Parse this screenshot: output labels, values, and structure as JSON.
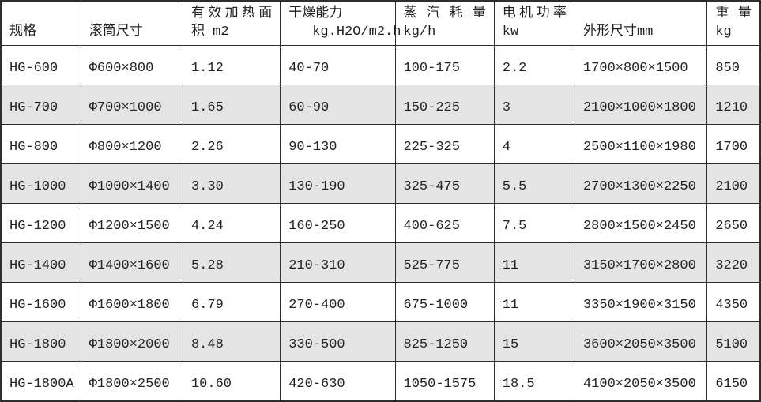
{
  "colors": {
    "border": "#2e2e2e",
    "stripe_gray": "#e4e4e4",
    "background": "#ffffff",
    "text": "#222222"
  },
  "table": {
    "columns": [
      {
        "key": "spec",
        "top": "",
        "bottom": "规格",
        "spread": false,
        "indent_bottom": false
      },
      {
        "key": "drum-size",
        "top": "",
        "bottom": "滚筒尺寸",
        "spread": false,
        "indent_bottom": false
      },
      {
        "key": "heating-area",
        "top": "有效加热面",
        "bottom": "积 m2",
        "spread": true,
        "indent_bottom": false
      },
      {
        "key": "drying-capacity",
        "top": "干燥能力",
        "bottom": "kg.H2O/m2.h",
        "spread": false,
        "indent_bottom": true
      },
      {
        "key": "steam-consumption",
        "top": "蒸汽耗量",
        "bottom": "kg/h",
        "spread": true,
        "indent_bottom": false
      },
      {
        "key": "motor-power",
        "top": "电机功率",
        "bottom": "kw",
        "spread": true,
        "indent_bottom": false
      },
      {
        "key": "dimensions",
        "top": "",
        "bottom": "外形尺寸mm",
        "spread": false,
        "indent_bottom": false
      },
      {
        "key": "weight",
        "top": "重量",
        "bottom": "kg",
        "spread": true,
        "indent_bottom": false
      }
    ],
    "rows": [
      [
        "HG-600",
        "Φ600×800",
        "1.12",
        "40-70",
        "100-175",
        "2.2",
        "1700×800×1500",
        "850"
      ],
      [
        "HG-700",
        "Φ700×1000",
        "1.65",
        "60-90",
        "150-225",
        "3",
        "2100×1000×1800",
        "1210"
      ],
      [
        "HG-800",
        "Φ800×1200",
        "2.26",
        "90-130",
        "225-325",
        "4",
        "2500×1100×1980",
        "1700"
      ],
      [
        "HG-1000",
        "Φ1000×1400",
        "3.30",
        "130-190",
        "325-475",
        "5.5",
        "2700×1300×2250",
        "2100"
      ],
      [
        "HG-1200",
        "Φ1200×1500",
        "4.24",
        "160-250",
        "400-625",
        "7.5",
        "2800×1500×2450",
        "2650"
      ],
      [
        "HG-1400",
        "Φ1400×1600",
        "5.28",
        "210-310",
        "525-775",
        "11",
        "3150×1700×2800",
        "3220"
      ],
      [
        "HG-1600",
        "Φ1600×1800",
        "6.79",
        "270-400",
        "675-1000",
        "11",
        "3350×1900×3150",
        "4350"
      ],
      [
        "HG-1800",
        "Φ1800×2000",
        "8.48",
        "330-500",
        "825-1250",
        "15",
        "3600×2050×3500",
        "5100"
      ],
      [
        "HG-1800A",
        "Φ1800×2500",
        "10.60",
        "420-630",
        "1050-1575",
        "18.5",
        "4100×2050×3500",
        "6150"
      ]
    ]
  }
}
